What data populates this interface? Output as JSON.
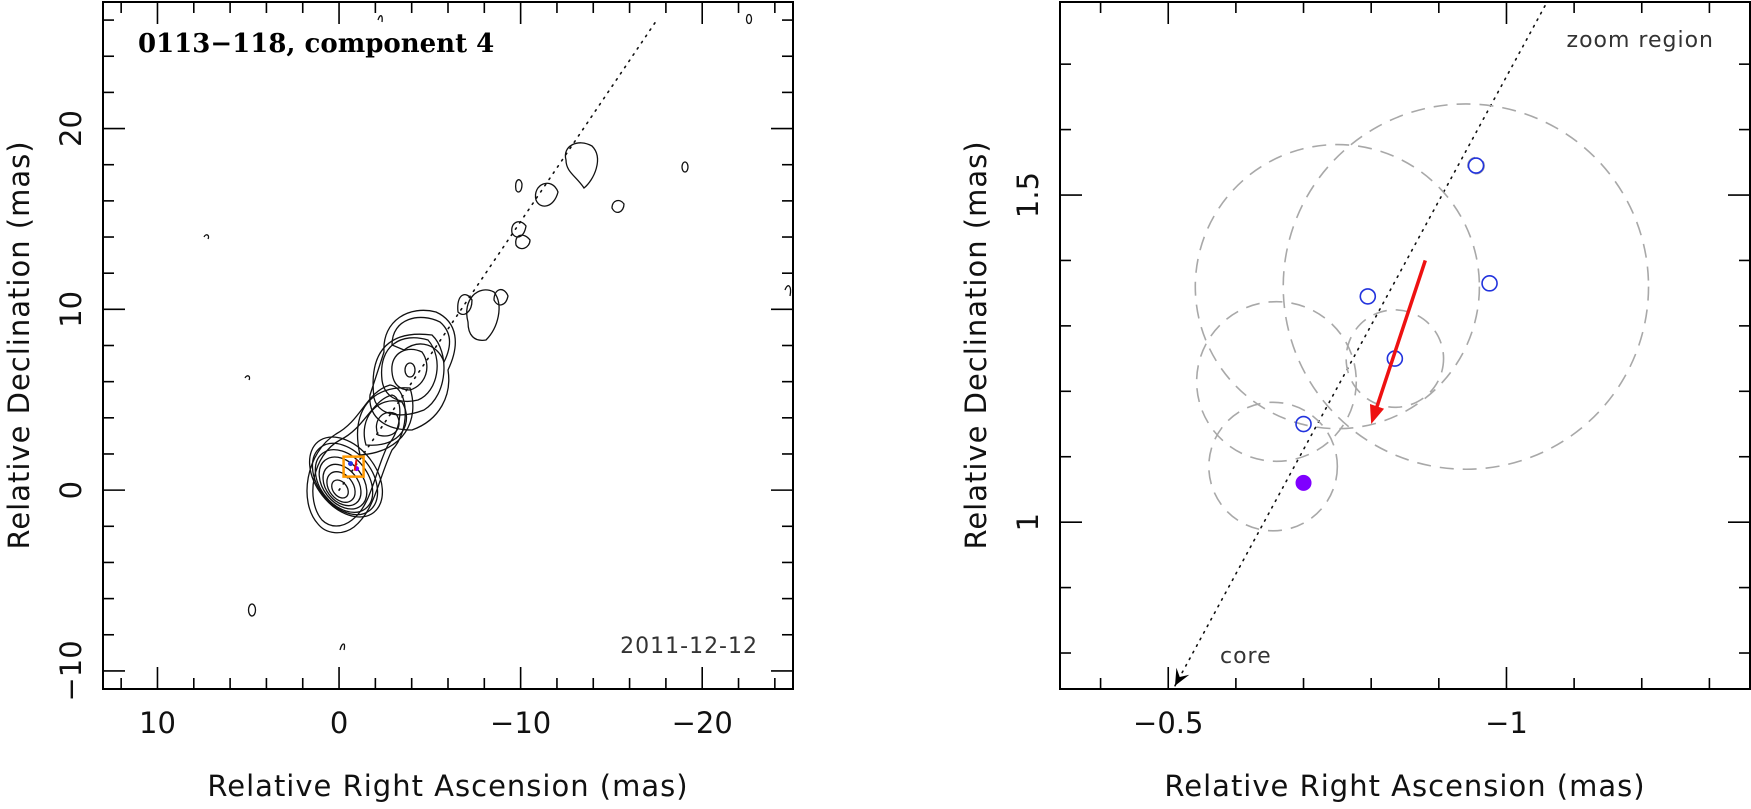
{
  "chart_data": [
    {
      "type": "contour",
      "title": "0113−118, component 4",
      "epoch": "2011-12-12",
      "xlabel": "Relative Right Ascension (mas)",
      "ylabel": "Relative Declination (mas)",
      "xlim": [
        13,
        -25
      ],
      "ylim": [
        -11,
        27
      ],
      "xticks": [
        10,
        0,
        -10,
        -20
      ],
      "xtick_labels": [
        "10",
        "0",
        "−10",
        "−20"
      ],
      "yticks": [
        -10,
        0,
        10,
        20
      ],
      "ytick_labels": [
        "−10",
        "0",
        "10",
        "20"
      ],
      "zoom_marker": {
        "x": -0.8,
        "y": 1.3,
        "color": "#ff9900"
      },
      "jet_axis": {
        "from": [
          0,
          0
        ],
        "to": [
          -17.5,
          26
        ]
      },
      "grid": false,
      "legend": "none"
    },
    {
      "type": "scatter",
      "title": "zoom region",
      "core_label": "core",
      "xlabel": "Relative Right Ascension (mas)",
      "ylabel": "Relative Declination (mas)",
      "xlim": [
        -0.34,
        -1.36
      ],
      "ylim": [
        0.745,
        1.795
      ],
      "xticks": [
        -0.5,
        -1
      ],
      "xtick_labels": [
        "−0.5",
        "−1"
      ],
      "yticks": [
        1,
        1.5
      ],
      "ytick_labels": [
        "1",
        "1.5"
      ],
      "points": [
        {
          "x": -0.7,
          "y": 1.06,
          "marker": "filled",
          "color": "#7f00ff"
        },
        {
          "x": -0.7,
          "y": 1.15,
          "marker": "open",
          "color": "#2233dd"
        },
        {
          "x": -0.835,
          "y": 1.25,
          "marker": "open",
          "color": "#2233dd"
        },
        {
          "x": -0.795,
          "y": 1.345,
          "marker": "open",
          "color": "#2233dd"
        },
        {
          "x": -0.975,
          "y": 1.365,
          "marker": "open",
          "color": "#2233dd"
        },
        {
          "x": -0.955,
          "y": 1.545,
          "marker": "open",
          "color": "#2233dd"
        }
      ],
      "error_circles": [
        {
          "x": -0.655,
          "y": 1.085,
          "r": 0.095
        },
        {
          "x": -0.66,
          "y": 1.215,
          "r": 0.118
        },
        {
          "x": -0.835,
          "y": 1.25,
          "r": 0.072
        },
        {
          "x": -0.75,
          "y": 1.36,
          "r": 0.21
        },
        {
          "x": -0.94,
          "y": 1.36,
          "r": 0.27
        },
        {
          "x": -0.955,
          "y": 1.545,
          "r": 0.012
        }
      ],
      "motion_vector": {
        "from": [
          -0.88,
          1.4
        ],
        "to": [
          -0.8,
          1.15
        ],
        "color": "#ee1111"
      },
      "jet_axis": {
        "from": [
          -0.51,
          0.75
        ],
        "to": [
          -1.06,
          1.795
        ]
      },
      "grid": false,
      "legend": "none"
    }
  ]
}
